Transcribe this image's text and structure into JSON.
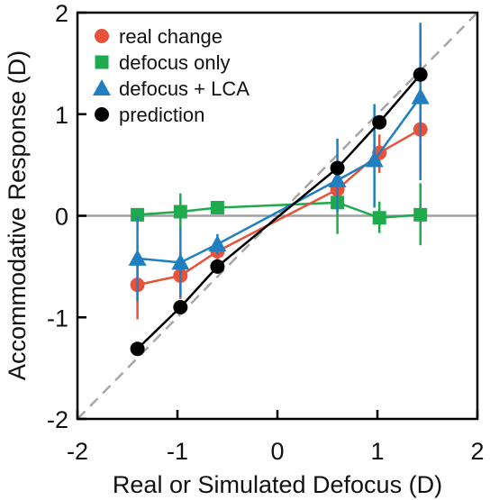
{
  "chart_data": {
    "type": "line",
    "xlabel": "Real or Simulated Defocus (D)",
    "ylabel": "Accommodative Response (D)",
    "xlim": [
      -2,
      2
    ],
    "ylim": [
      -2,
      2
    ],
    "xticks": [
      -2,
      -1,
      0,
      1,
      2
    ],
    "yticks": [
      -2,
      -1,
      0,
      1,
      2
    ],
    "xtick_labels": [
      "-2",
      "-1",
      "0",
      "1",
      "2"
    ],
    "ytick_labels": [
      "-2",
      "-1",
      "0",
      "1",
      "2"
    ],
    "grid": false,
    "legend_position": "top-left",
    "reference_lines": [
      {
        "kind": "identity",
        "style": "dashed",
        "color": "#a6a6a6"
      },
      {
        "kind": "horizontal",
        "y": 0,
        "style": "solid",
        "color": "#a0a0a0"
      }
    ],
    "series": [
      {
        "name": "real change",
        "marker": "circle",
        "color": "#e8513a",
        "points": [
          {
            "x": -1.4,
            "y": -0.68,
            "err_low": -1.02,
            "err_high": -0.44
          },
          {
            "x": -0.97,
            "y": -0.59,
            "err_low": -0.82,
            "err_high": -0.36
          },
          {
            "x": -0.6,
            "y": -0.35,
            "err_low": -0.5,
            "err_high": -0.24
          },
          {
            "x": 0.6,
            "y": 0.26,
            "err_low": 0.1,
            "err_high": 0.42
          },
          {
            "x": 1.02,
            "y": 0.62,
            "err_low": 0.42,
            "err_high": 0.8
          },
          {
            "x": 1.43,
            "y": 0.85,
            "err_low": 0.62,
            "err_high": 1.08
          }
        ]
      },
      {
        "name": "defocus only",
        "marker": "square",
        "color": "#1faa4e",
        "points": [
          {
            "x": -1.4,
            "y": 0.01,
            "err_low": -0.04,
            "err_high": 0.06
          },
          {
            "x": -0.97,
            "y": 0.04,
            "err_low": -0.13,
            "err_high": 0.22
          },
          {
            "x": -0.6,
            "y": 0.08,
            "err_low": 0.04,
            "err_high": 0.12
          },
          {
            "x": 0.6,
            "y": 0.13,
            "err_low": -0.18,
            "err_high": 0.3
          },
          {
            "x": 1.02,
            "y": -0.02,
            "err_low": -0.17,
            "err_high": 0.14
          },
          {
            "x": 1.43,
            "y": 0.01,
            "err_low": -0.29,
            "err_high": 0.32
          }
        ]
      },
      {
        "name": "defocus + LCA",
        "marker": "triangle",
        "color": "#1f7fc1",
        "points": [
          {
            "x": -1.4,
            "y": -0.42,
            "err_low": -0.84,
            "err_high": 0.0
          },
          {
            "x": -0.97,
            "y": -0.46,
            "err_low": -0.8,
            "err_high": -0.12
          },
          {
            "x": -0.6,
            "y": -0.28,
            "err_low": -0.38,
            "err_high": -0.18
          },
          {
            "x": 0.6,
            "y": 0.35,
            "err_low": 0.04,
            "err_high": 0.76
          },
          {
            "x": 0.97,
            "y": 0.55,
            "err_low": 0.08,
            "err_high": 1.1
          },
          {
            "x": 1.43,
            "y": 1.17,
            "err_low": 0.35,
            "err_high": 1.9
          }
        ]
      },
      {
        "name": "prediction",
        "marker": "circle",
        "color": "#000000",
        "points": [
          {
            "x": -1.4,
            "y": -1.31
          },
          {
            "x": -0.97,
            "y": -0.9
          },
          {
            "x": -0.6,
            "y": -0.5
          },
          {
            "x": 0.6,
            "y": 0.47
          },
          {
            "x": 1.02,
            "y": 0.92
          },
          {
            "x": 1.43,
            "y": 1.39
          }
        ]
      }
    ]
  }
}
